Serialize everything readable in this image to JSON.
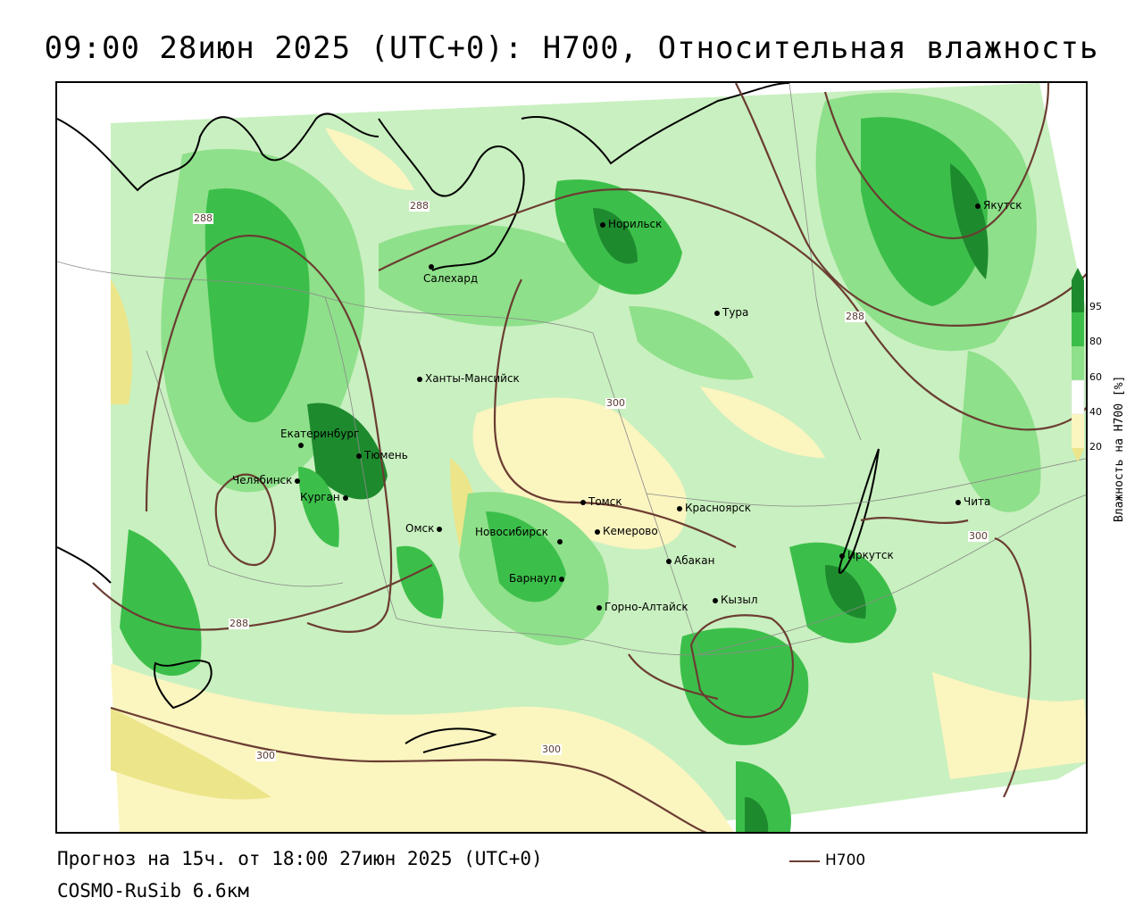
{
  "title": "09:00 28июн 2025 (UTC+0): H700, Относительная влажность",
  "footer": {
    "forecast": "Прогноз на 15ч. от 18:00 27июн 2025 (UTC+0)",
    "model": "COSMO-RuSib 6.6км",
    "legend_label": "H700"
  },
  "colors": {
    "humid_dark": "#1e8a2e",
    "humid_mid": "#3cbf4a",
    "humid_light": "#8ee08a",
    "humid_pale": "#c9f0c0",
    "dry_pale": "#fbf5c0",
    "dry_mid": "#ece58a",
    "contour": "#6b3d32"
  },
  "cities": [
    {
      "name": "Якутск"
    },
    {
      "name": "Норильск"
    },
    {
      "name": "Салехард"
    },
    {
      "name": "Тура"
    },
    {
      "name": "Ханты-Мансийск"
    },
    {
      "name": "Екатеринбург"
    },
    {
      "name": "Тюмень"
    },
    {
      "name": "Челябинск"
    },
    {
      "name": "Курган"
    },
    {
      "name": "Омск"
    },
    {
      "name": "Томск"
    },
    {
      "name": "Красноярск"
    },
    {
      "name": "Новосибирск"
    },
    {
      "name": "Кемерово"
    },
    {
      "name": "Абакан"
    },
    {
      "name": "Барнаул"
    },
    {
      "name": "Горно-Алтайск"
    },
    {
      "name": "Кызыл"
    },
    {
      "name": "Иркутск"
    },
    {
      "name": "Чита"
    }
  ],
  "contour_labels": [
    "288",
    "288",
    "288",
    "300",
    "288",
    "300",
    "300",
    "300"
  ],
  "scale": {
    "label": "Влажность на H700 [%]",
    "ticks": [
      "95",
      "80",
      "60",
      "40",
      "20"
    ]
  }
}
